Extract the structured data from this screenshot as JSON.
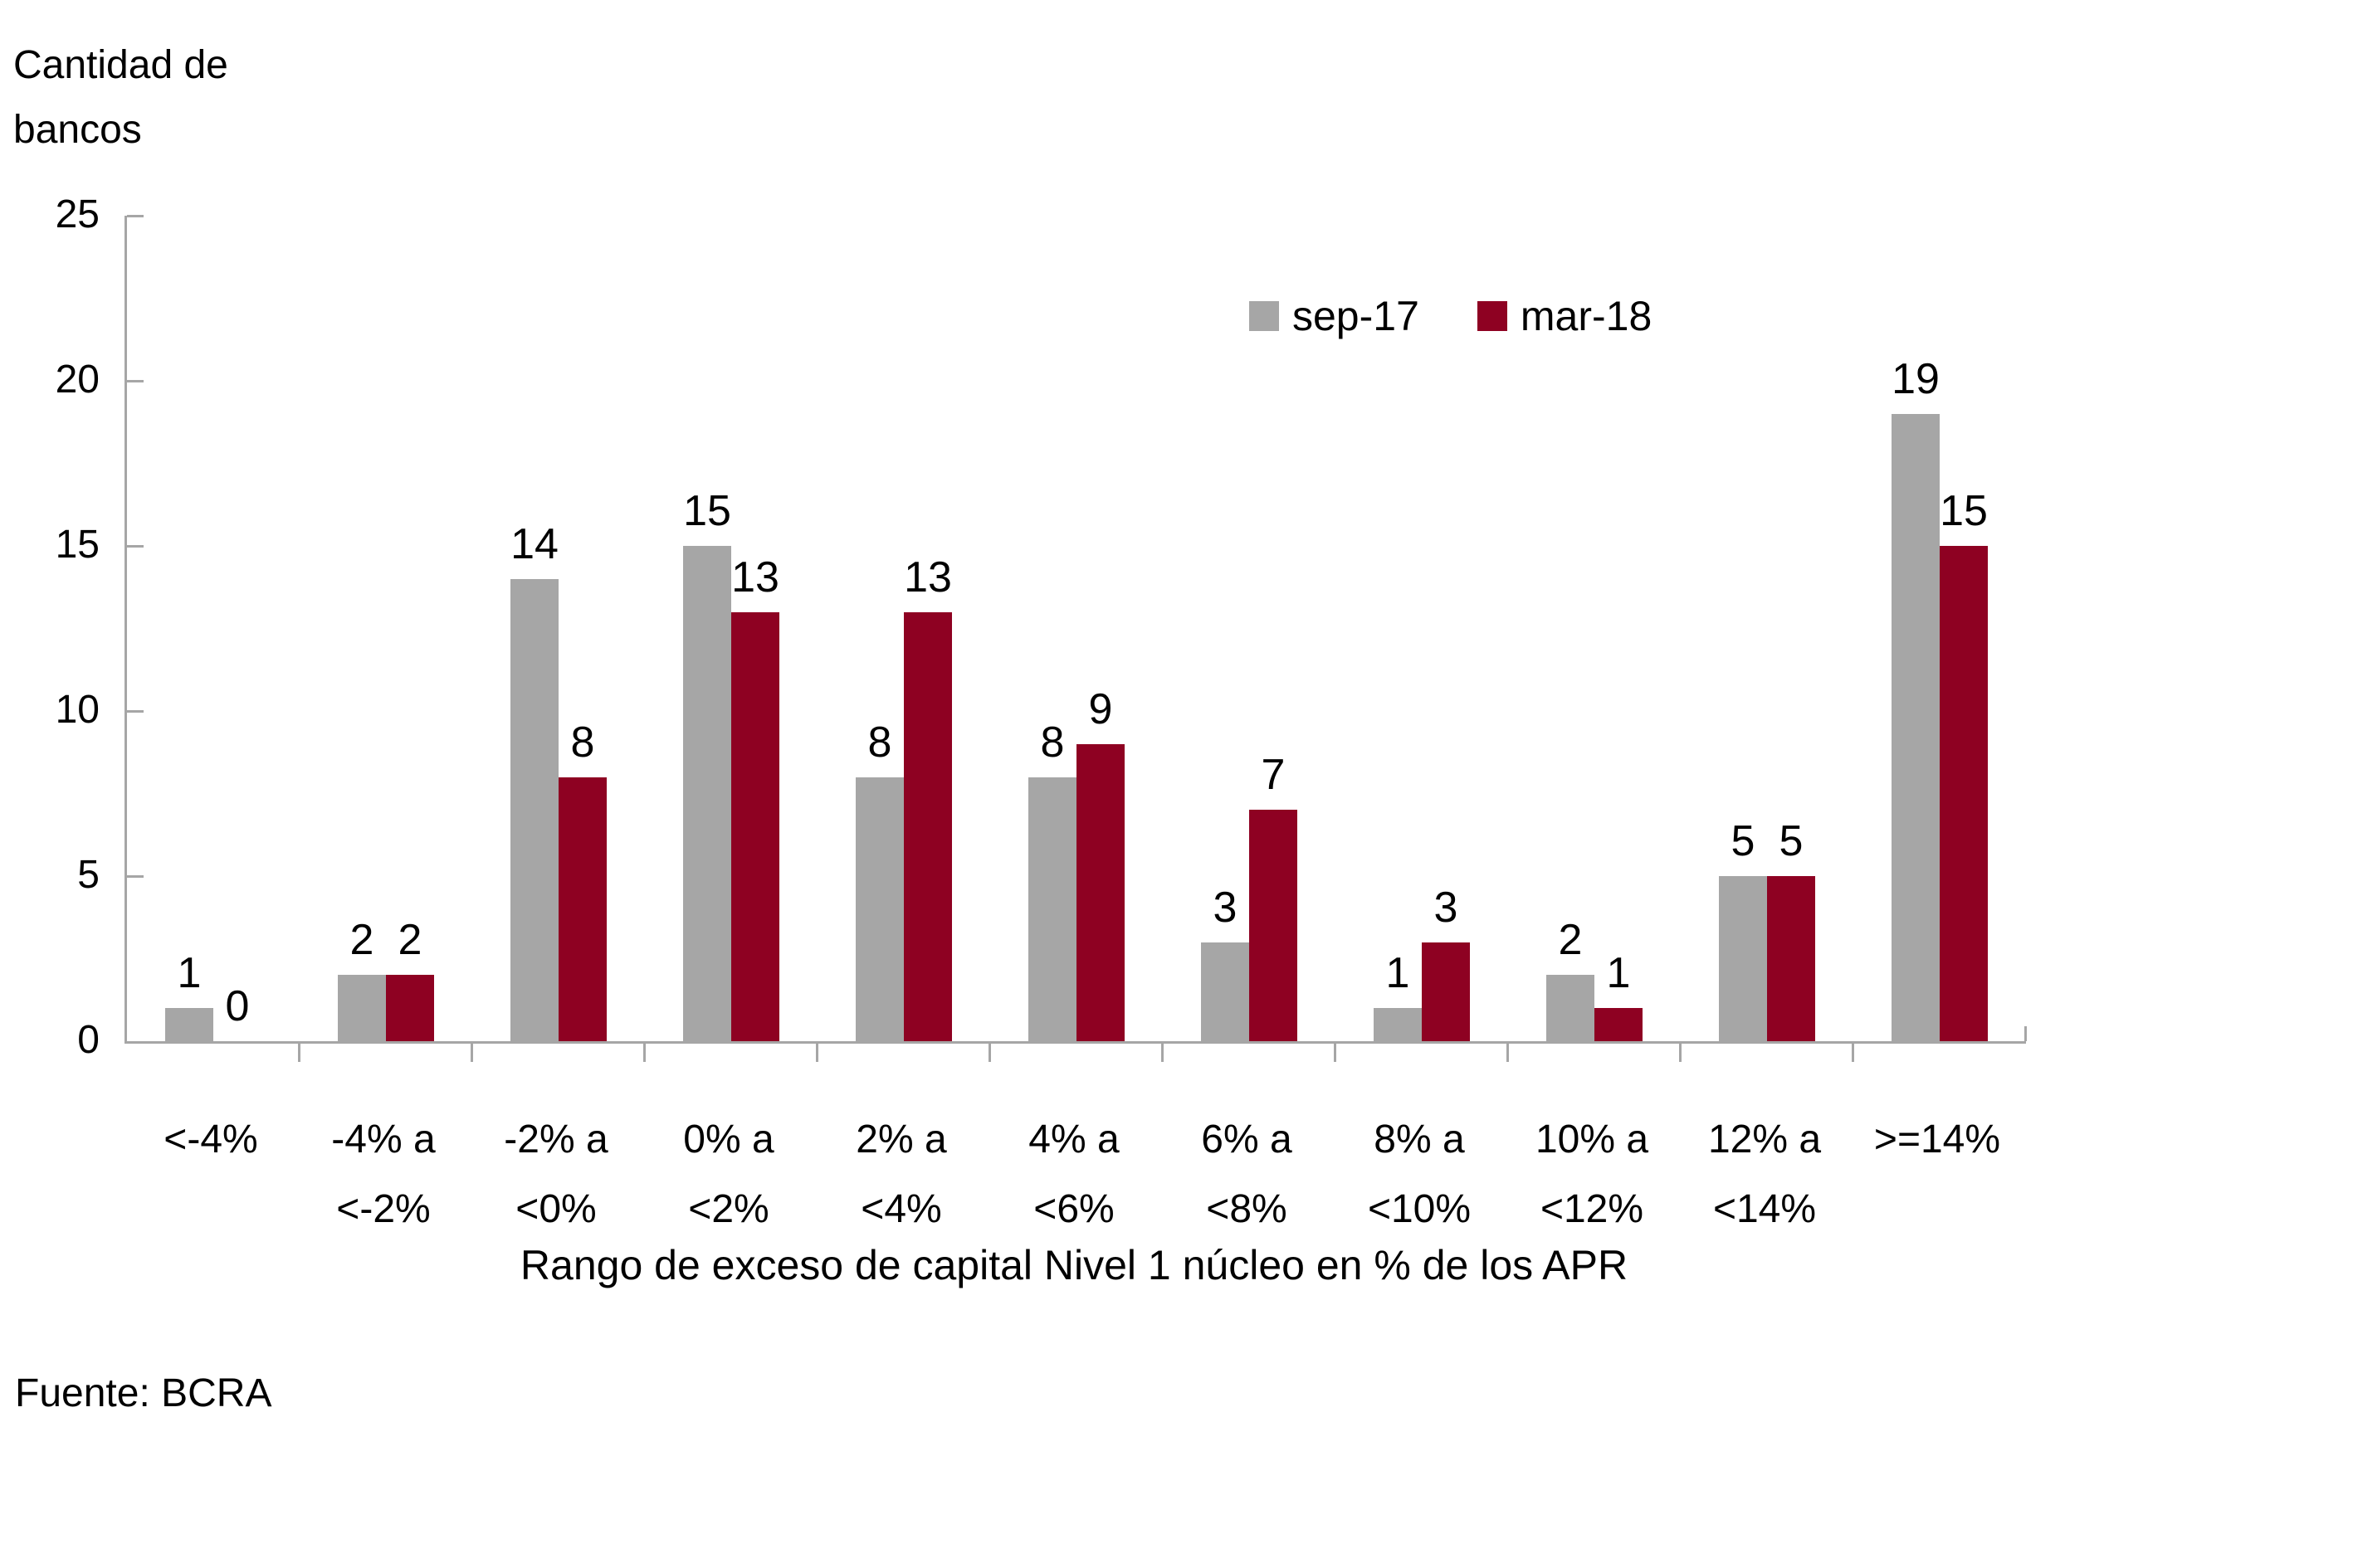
{
  "chart_data": {
    "type": "bar",
    "title": "",
    "ylabel": "Cantidad de bancos",
    "xlabel": "Rango de exceso de capital Nivel 1 núcleo en % de los APR",
    "ylim": [
      0,
      25
    ],
    "yticks": [
      0,
      5,
      10,
      15,
      20,
      25
    ],
    "grid": false,
    "legend_position": "top-right",
    "categories": [
      "<-4%",
      "-4% a <-2%",
      "-2% a <0%",
      "0% a <2%",
      "2% a <4%",
      "4% a <6%",
      "6% a <8%",
      "8% a <10%",
      "10% a <12%",
      "12% a <14%",
      ">=14%"
    ],
    "category_label_lines": [
      [
        "<-4%"
      ],
      [
        "-4% a",
        "<-2%"
      ],
      [
        "-2% a",
        "<0%"
      ],
      [
        "0% a",
        "<2%"
      ],
      [
        "2% a",
        "<4%"
      ],
      [
        "4% a",
        "<6%"
      ],
      [
        "6% a",
        "<8%"
      ],
      [
        "8% a",
        "<10%"
      ],
      [
        "10% a",
        "<12%"
      ],
      [
        "12% a",
        "<14%"
      ],
      [
        ">=14%"
      ]
    ],
    "series": [
      {
        "name": "sep-17",
        "color": "#a6a6a6",
        "values": [
          1,
          2,
          14,
          15,
          8,
          8,
          3,
          1,
          2,
          5,
          19
        ]
      },
      {
        "name": "mar-18",
        "color": "#8e0122",
        "values": [
          0,
          2,
          8,
          13,
          13,
          9,
          7,
          3,
          1,
          5,
          15
        ]
      }
    ]
  },
  "source": "Fuente: BCRA",
  "colors": {
    "axis": "#a6a6a6",
    "text": "#000000",
    "background": "#ffffff"
  }
}
